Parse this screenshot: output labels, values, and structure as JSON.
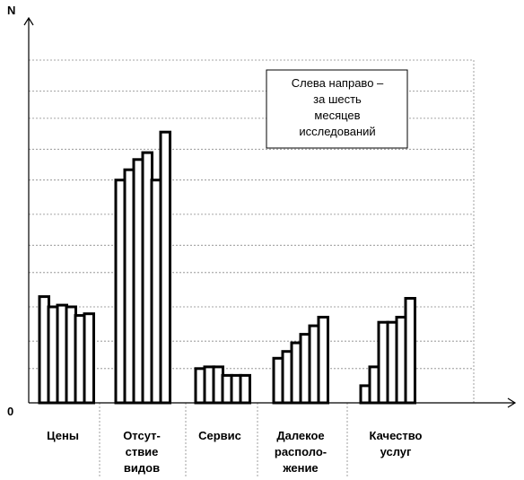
{
  "chart_data": {
    "type": "bar",
    "ylabel": "N",
    "y_origin_label": "0",
    "ylim": [
      0,
      100
    ],
    "y_gridlines": [
      10,
      18,
      28,
      38,
      46,
      55,
      65,
      74,
      83,
      91,
      100
    ],
    "grid": true,
    "categories": [
      [
        "Цены"
      ],
      [
        "Отсут-",
        "ствие",
        "видов"
      ],
      [
        "Сервис"
      ],
      [
        "Далекое",
        "располо-",
        "жение"
      ],
      [
        "Качество",
        "услуг"
      ]
    ],
    "series_note": [
      "Слева направо –",
      "за шесть",
      "месяцев",
      "исследований"
    ],
    "values": [
      [
        31,
        28,
        28.5,
        28,
        25.5,
        26
      ],
      [
        65,
        68,
        71,
        73,
        65,
        79
      ],
      [
        10,
        10.5,
        10.5,
        8,
        8,
        8
      ],
      [
        13,
        15,
        17.5,
        20,
        22.5,
        25
      ],
      [
        5,
        10.5,
        23.5,
        23.5,
        25,
        30.5
      ]
    ]
  }
}
